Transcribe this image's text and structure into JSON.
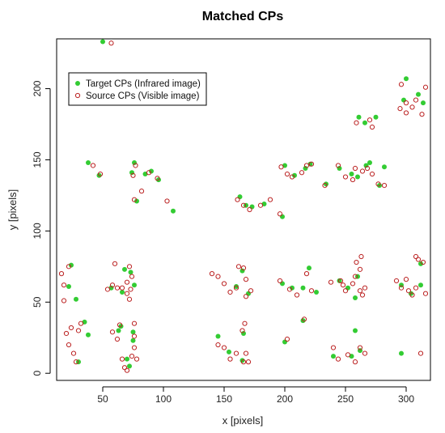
{
  "chart_data": {
    "type": "scatter",
    "title": "Matched CPs",
    "xlabel": "x [pixels]",
    "ylabel": "y [pixels]",
    "xlim": [
      12,
      320
    ],
    "ylim": [
      -5,
      235
    ],
    "x_ticks": [
      50,
      100,
      150,
      200,
      250,
      300
    ],
    "y_ticks": [
      0,
      50,
      100,
      150,
      200
    ],
    "grid": false,
    "legend_position": "top-left",
    "series": [
      {
        "name": "Target CPs (Infrared image)",
        "color": "#33cc33",
        "marker": "filled-circle",
        "points": [
          [
            50,
            233
          ],
          [
            38,
            148
          ],
          [
            47,
            139
          ],
          [
            76,
            148
          ],
          [
            74,
            141
          ],
          [
            85,
            140
          ],
          [
            90,
            142
          ],
          [
            96,
            136
          ],
          [
            78,
            121
          ],
          [
            108,
            114
          ],
          [
            22,
            61
          ],
          [
            24,
            76
          ],
          [
            28,
            52
          ],
          [
            35,
            36
          ],
          [
            38,
            27
          ],
          [
            30,
            8
          ],
          [
            57,
            60
          ],
          [
            68,
            73
          ],
          [
            73,
            71
          ],
          [
            76,
            62
          ],
          [
            66,
            57
          ],
          [
            63,
            30
          ],
          [
            65,
            33
          ],
          [
            70,
            10
          ],
          [
            75,
            23
          ],
          [
            75,
            29
          ],
          [
            72,
            5
          ],
          [
            163,
            124
          ],
          [
            168,
            118
          ],
          [
            173,
            117
          ],
          [
            183,
            119
          ],
          [
            200,
            146
          ],
          [
            208,
            139
          ],
          [
            198,
            110
          ],
          [
            217,
            144
          ],
          [
            221,
            147
          ],
          [
            234,
            133
          ],
          [
            245,
            144
          ],
          [
            255,
            140
          ],
          [
            260,
            138
          ],
          [
            267,
            146
          ],
          [
            270,
            148
          ],
          [
            278,
            132
          ],
          [
            282,
            145
          ],
          [
            160,
            61
          ],
          [
            165,
            72
          ],
          [
            170,
            56
          ],
          [
            154,
            15
          ],
          [
            145,
            26
          ],
          [
            165,
            9
          ],
          [
            166,
            28
          ],
          [
            198,
            63
          ],
          [
            206,
            60
          ],
          [
            215,
            60
          ],
          [
            220,
            74
          ],
          [
            226,
            57
          ],
          [
            215,
            37
          ],
          [
            200,
            22
          ],
          [
            240,
            12
          ],
          [
            245,
            65
          ],
          [
            252,
            60
          ],
          [
            258,
            53
          ],
          [
            260,
            68
          ],
          [
            258,
            30
          ],
          [
            255,
            12
          ],
          [
            262,
            16
          ],
          [
            296,
            14
          ],
          [
            296,
            62
          ],
          [
            304,
            56
          ],
          [
            312,
            62
          ],
          [
            312,
            77
          ],
          [
            300,
            207
          ],
          [
            310,
            196
          ],
          [
            298,
            192
          ],
          [
            314,
            190
          ],
          [
            261,
            180
          ],
          [
            266,
            176
          ],
          [
            275,
            180
          ]
        ]
      },
      {
        "name": "Source CPs (Visible image)",
        "color": "#bb2222",
        "marker": "open-circle",
        "points": [
          [
            57,
            232
          ],
          [
            42,
            146
          ],
          [
            48,
            140
          ],
          [
            77,
            146
          ],
          [
            75,
            139
          ],
          [
            82,
            128
          ],
          [
            88,
            141
          ],
          [
            95,
            137
          ],
          [
            76,
            122
          ],
          [
            103,
            121
          ],
          [
            16,
            70
          ],
          [
            18,
            62
          ],
          [
            22,
            75
          ],
          [
            18,
            51
          ],
          [
            24,
            32
          ],
          [
            20,
            28
          ],
          [
            22,
            20
          ],
          [
            26,
            14
          ],
          [
            30,
            30
          ],
          [
            32,
            35
          ],
          [
            28,
            8
          ],
          [
            54,
            59
          ],
          [
            58,
            62
          ],
          [
            60,
            77
          ],
          [
            62,
            60
          ],
          [
            66,
            60
          ],
          [
            70,
            56
          ],
          [
            70,
            64
          ],
          [
            72,
            75
          ],
          [
            74,
            68
          ],
          [
            72,
            52
          ],
          [
            73,
            59
          ],
          [
            58,
            29
          ],
          [
            62,
            24
          ],
          [
            64,
            34
          ],
          [
            66,
            10
          ],
          [
            68,
            4
          ],
          [
            70,
            2
          ],
          [
            74,
            12
          ],
          [
            76,
            18
          ],
          [
            76,
            26
          ],
          [
            78,
            10
          ],
          [
            76,
            35
          ],
          [
            140,
            70
          ],
          [
            145,
            68
          ],
          [
            150,
            63
          ],
          [
            155,
            57
          ],
          [
            160,
            60
          ],
          [
            162,
            75
          ],
          [
            166,
            74
          ],
          [
            168,
            66
          ],
          [
            168,
            54
          ],
          [
            172,
            58
          ],
          [
            145,
            20
          ],
          [
            150,
            18
          ],
          [
            155,
            10
          ],
          [
            160,
            14
          ],
          [
            165,
            30
          ],
          [
            167,
            35
          ],
          [
            168,
            14
          ],
          [
            170,
            8
          ],
          [
            166,
            8
          ],
          [
            161,
            122
          ],
          [
            166,
            118
          ],
          [
            171,
            115
          ],
          [
            180,
            118
          ],
          [
            188,
            122
          ],
          [
            197,
            145
          ],
          [
            202,
            140
          ],
          [
            206,
            138
          ],
          [
            196,
            112
          ],
          [
            214,
            141
          ],
          [
            218,
            146
          ],
          [
            222,
            147
          ],
          [
            233,
            132
          ],
          [
            244,
            146
          ],
          [
            250,
            138
          ],
          [
            256,
            136
          ],
          [
            258,
            144
          ],
          [
            264,
            142
          ],
          [
            268,
            144
          ],
          [
            272,
            140
          ],
          [
            277,
            133
          ],
          [
            282,
            132
          ],
          [
            196,
            65
          ],
          [
            204,
            59
          ],
          [
            210,
            55
          ],
          [
            218,
            70
          ],
          [
            222,
            58
          ],
          [
            216,
            38
          ],
          [
            202,
            24
          ],
          [
            238,
            64
          ],
          [
            240,
            18
          ],
          [
            244,
            10
          ],
          [
            246,
            65
          ],
          [
            248,
            62
          ],
          [
            250,
            58
          ],
          [
            252,
            13
          ],
          [
            256,
            63
          ],
          [
            258,
            68
          ],
          [
            259,
            78
          ],
          [
            262,
            73
          ],
          [
            262,
            58
          ],
          [
            263,
            82
          ],
          [
            264,
            55
          ],
          [
            266,
            60
          ],
          [
            258,
            8
          ],
          [
            262,
            18
          ],
          [
            266,
            14
          ],
          [
            292,
            65
          ],
          [
            296,
            60
          ],
          [
            300,
            66
          ],
          [
            302,
            58
          ],
          [
            305,
            55
          ],
          [
            308,
            60
          ],
          [
            308,
            82
          ],
          [
            310,
            80
          ],
          [
            314,
            78
          ],
          [
            316,
            56
          ],
          [
            312,
            14
          ],
          [
            296,
            203
          ],
          [
            300,
            190
          ],
          [
            305,
            187
          ],
          [
            308,
            192
          ],
          [
            313,
            182
          ],
          [
            316,
            201
          ],
          [
            300,
            183
          ],
          [
            295,
            186
          ],
          [
            259,
            176
          ],
          [
            270,
            178
          ],
          [
            272,
            173
          ]
        ]
      }
    ]
  }
}
